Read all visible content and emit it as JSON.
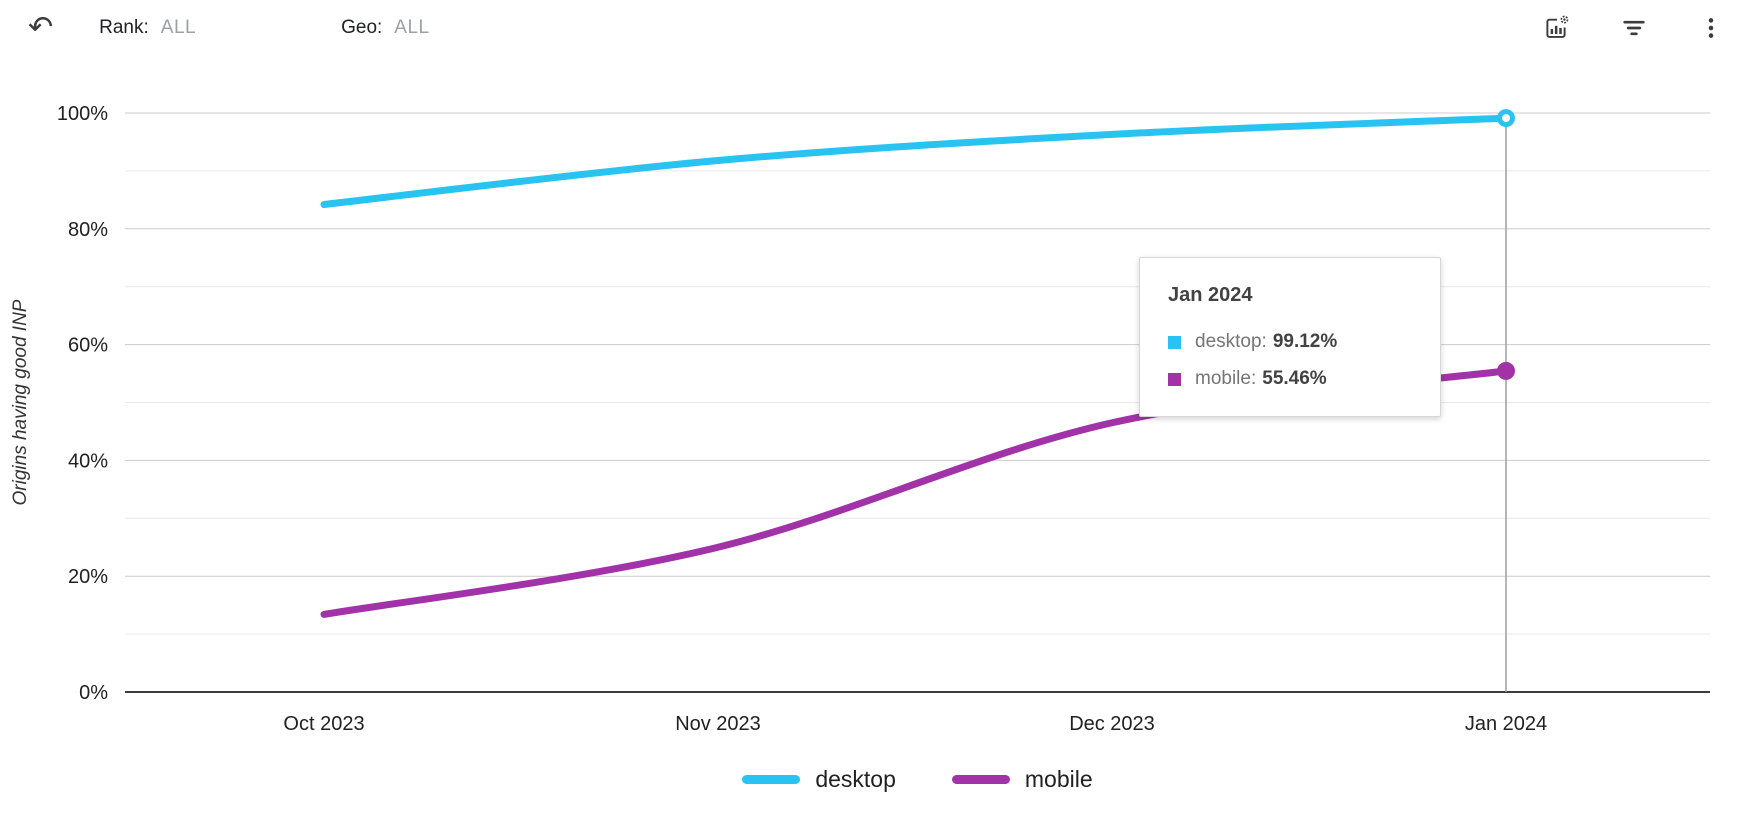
{
  "header": {
    "rank": {
      "label": "Rank:",
      "value": "ALL"
    },
    "geo": {
      "label": "Geo:",
      "value": "ALL"
    }
  },
  "chart_data": {
    "type": "line",
    "title": "",
    "ylabel": "Origins having good INP",
    "xlabel": "",
    "categories": [
      "Oct 2023",
      "Nov 2023",
      "Dec 2023",
      "Jan 2024"
    ],
    "series": [
      {
        "name": "desktop",
        "color": "#29C3F2",
        "point_style": "ring",
        "values": [
          84.2,
          91.8,
          96.3,
          99.12
        ]
      },
      {
        "name": "mobile",
        "color": "#A232A8",
        "point_style": "solid",
        "values": [
          13.4,
          25.0,
          46.5,
          55.46
        ]
      }
    ],
    "ylim": [
      0,
      100
    ],
    "yticks_major": [
      0,
      20,
      40,
      60,
      80,
      100
    ],
    "ytick_labels": [
      "0%",
      "20%",
      "40%",
      "60%",
      "80%",
      "100%"
    ],
    "yticks_minor": [
      10,
      30,
      50,
      70,
      90
    ],
    "grid": true,
    "legend_position": "bottom",
    "highlight": {
      "category": "Jan 2024",
      "index": 3
    }
  },
  "tooltip": {
    "title": "Jan 2024",
    "rows": [
      {
        "label": "desktop:",
        "value": "99.12%",
        "color": "#29C3F2"
      },
      {
        "label": "mobile:",
        "value": "55.46%",
        "color": "#A232A8"
      }
    ]
  },
  "legend": {
    "items": [
      {
        "label": "desktop",
        "color": "#29C3F2"
      },
      {
        "label": "mobile",
        "color": "#A232A8"
      }
    ]
  },
  "colors": {
    "grid_major": "#cccccc",
    "grid_minor": "#e9e9e9",
    "axis": "#3c3c3c",
    "crosshair": "#9e9e9e",
    "icon": "#3c3c3c"
  }
}
